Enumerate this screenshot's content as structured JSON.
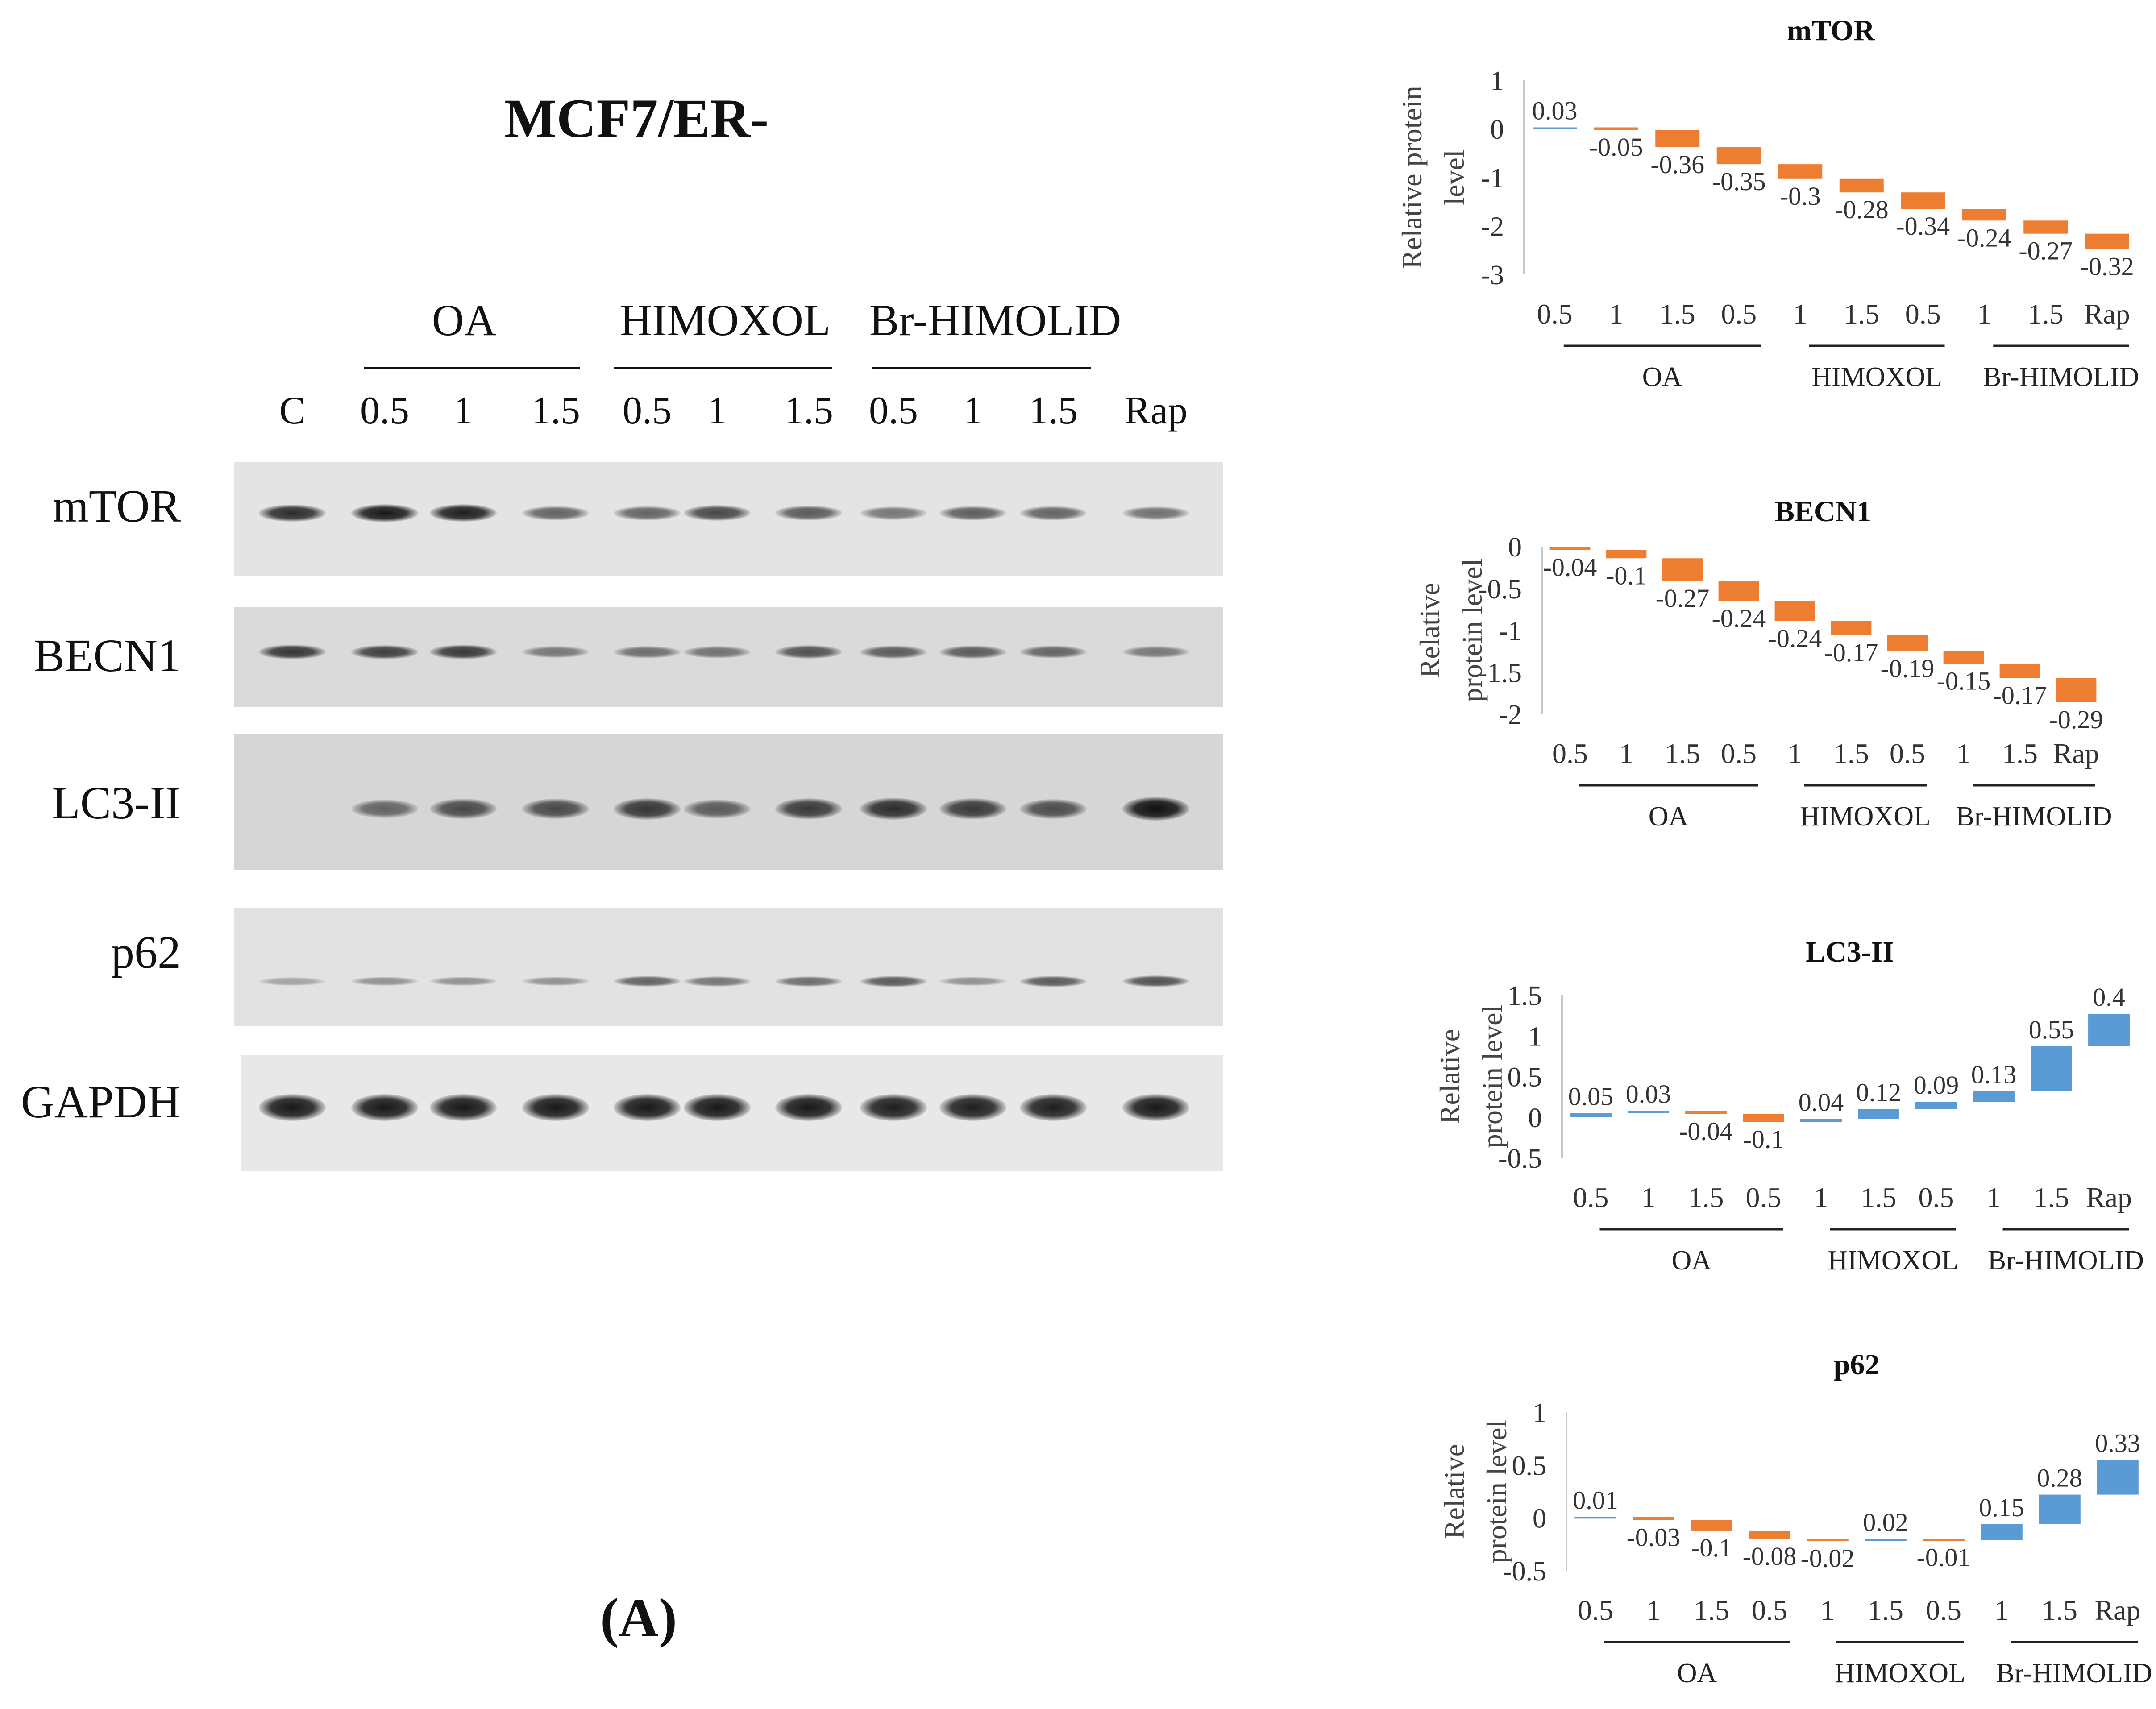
{
  "figure": {
    "title": "MCF7/ER-",
    "panel_label": "(A)",
    "groups": [
      "OA",
      "HIMOXOL",
      "Br-HIMOLID"
    ],
    "lanes": [
      "C",
      "0.5",
      "1",
      "1.5",
      "0.5",
      "1",
      "1.5",
      "0.5",
      "1",
      "1.5",
      "Rap"
    ],
    "proteins": [
      "mTOR",
      "BECN1",
      "LC3-II",
      "p62",
      "GAPDH"
    ],
    "band_intensity": {
      "mTOR": [
        0.85,
        0.95,
        0.92,
        0.55,
        0.55,
        0.7,
        0.6,
        0.45,
        0.58,
        0.55,
        0.48
      ],
      "BECN1": [
        0.8,
        0.75,
        0.78,
        0.45,
        0.5,
        0.48,
        0.65,
        0.6,
        0.6,
        0.55,
        0.45
      ],
      "LC3-II": [
        0.0,
        0.55,
        0.7,
        0.7,
        0.8,
        0.6,
        0.78,
        0.85,
        0.78,
        0.68,
        1.0
      ],
      "p62": [
        0.2,
        0.3,
        0.3,
        0.3,
        0.55,
        0.45,
        0.5,
        0.6,
        0.3,
        0.6,
        0.65
      ],
      "GAPDH": [
        0.95,
        0.95,
        0.95,
        0.95,
        0.95,
        0.95,
        0.95,
        0.92,
        0.92,
        0.92,
        0.95
      ]
    }
  },
  "colors": {
    "positive": "#5b9bd5",
    "negative": "#ed7d31",
    "axis": "#c8c8c8",
    "text": "#111111"
  },
  "chart_data": [
    {
      "type": "bar",
      "title": "mTOR",
      "ylabel": "Relative protein level",
      "categories": [
        "0.5",
        "1",
        "1.5",
        "0.5",
        "1",
        "1.5",
        "0.5",
        "1",
        "1.5",
        "Rap"
      ],
      "groups": [
        "OA",
        "HIMOXOL",
        "Br-HIMOLID"
      ],
      "values": [
        0.03,
        -0.05,
        -0.36,
        -0.35,
        -0.3,
        -0.28,
        -0.34,
        -0.24,
        -0.27,
        -0.32
      ],
      "yticks": [
        "1",
        "0",
        "-1",
        "-2",
        "-3"
      ],
      "ylim": [
        -3,
        1
      ],
      "style": "waterfall"
    },
    {
      "type": "bar",
      "title": "BECN1",
      "ylabel": "Relative protein level",
      "categories": [
        "0.5",
        "1",
        "1.5",
        "0.5",
        "1",
        "1.5",
        "0.5",
        "1",
        "1.5",
        "Rap"
      ],
      "groups": [
        "OA",
        "HIMOXOL",
        "Br-HIMOLID"
      ],
      "values": [
        -0.04,
        -0.1,
        -0.27,
        -0.24,
        -0.24,
        -0.17,
        -0.19,
        -0.15,
        -0.17,
        -0.29
      ],
      "yticks": [
        "0",
        "-0.5",
        "-1",
        "-1.5",
        "-2"
      ],
      "ylim": [
        -2,
        0
      ],
      "style": "waterfall"
    },
    {
      "type": "bar",
      "title": "LC3-II",
      "ylabel": "Relative protein level",
      "categories": [
        "0.5",
        "1",
        "1.5",
        "0.5",
        "1",
        "1.5",
        "0.5",
        "1",
        "1.5",
        "Rap"
      ],
      "groups": [
        "OA",
        "HIMOXOL",
        "Br-HIMOLID"
      ],
      "values": [
        0.05,
        0.03,
        -0.04,
        -0.1,
        0.04,
        0.12,
        0.09,
        0.13,
        0.55,
        0.4
      ],
      "yticks": [
        "1.5",
        "1",
        "0.5",
        "0",
        "-0.5"
      ],
      "ylim": [
        -0.5,
        1.5
      ],
      "style": "waterfall"
    },
    {
      "type": "bar",
      "title": "p62",
      "ylabel": "Relative protein level",
      "categories": [
        "0.5",
        "1",
        "1.5",
        "0.5",
        "1",
        "1.5",
        "0.5",
        "1",
        "1.5",
        "Rap"
      ],
      "groups": [
        "OA",
        "HIMOXOL",
        "Br-HIMOLID"
      ],
      "values": [
        0.01,
        -0.03,
        -0.1,
        -0.08,
        -0.02,
        0.02,
        -0.01,
        0.15,
        0.28,
        0.33
      ],
      "yticks": [
        "1",
        "0.5",
        "0",
        "-0.5"
      ],
      "ylim": [
        -0.5,
        1
      ],
      "style": "waterfall"
    }
  ]
}
